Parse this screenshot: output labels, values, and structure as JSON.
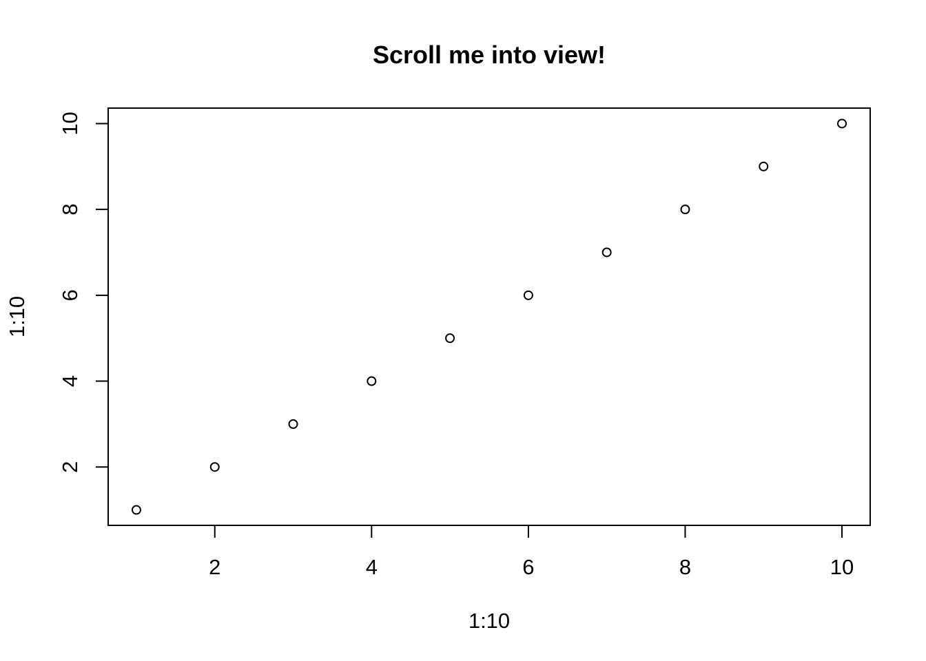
{
  "chart_data": {
    "type": "scatter",
    "title": "Scroll me into view!",
    "xlabel": "1:10",
    "ylabel": "1:10",
    "x": [
      1,
      2,
      3,
      4,
      5,
      6,
      7,
      8,
      9,
      10
    ],
    "y": [
      1,
      2,
      3,
      4,
      5,
      6,
      7,
      8,
      9,
      10
    ],
    "xticks": [
      2,
      4,
      6,
      8,
      10
    ],
    "yticks": [
      2,
      4,
      6,
      8,
      10
    ],
    "xlim": [
      0.64,
      10.36
    ],
    "ylim": [
      0.64,
      10.36
    ],
    "grid": false,
    "marker": "open-circle",
    "color": "#000000"
  }
}
